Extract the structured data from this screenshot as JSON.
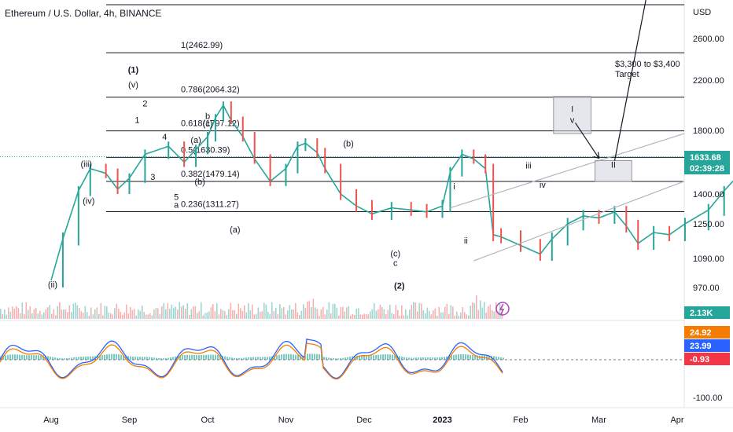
{
  "header": {
    "title": "Ethereum / U.S. Dollar, 4h, BINANCE"
  },
  "chart_data": {
    "type": "line",
    "price_axis": {
      "unit": "USD",
      "ticks": [
        2600,
        2200,
        1800,
        1400,
        1250,
        1090,
        970
      ],
      "tick_labels": [
        "2600.00",
        "2200.00",
        "1800.00",
        "1400.00",
        "1250.00",
        "1090.00",
        "970.00"
      ]
    },
    "time_axis": {
      "labels": [
        "Aug",
        "Sep",
        "Oct",
        "Nov",
        "Dec",
        "2023",
        "Feb",
        "Mar",
        "Apr"
      ]
    },
    "last_price": "1633.68",
    "countdown": "02:39:28",
    "volume_value": "2.13K",
    "fib_levels": [
      {
        "ratio": "1",
        "price": 2462.99,
        "label": "1(2462.99)"
      },
      {
        "ratio": "0.786",
        "price": 2064.32,
        "label": "0.786(2064.32)"
      },
      {
        "ratio": "0.618",
        "price": 1797.12,
        "label": "0.618(1797.12)"
      },
      {
        "ratio": "0.5",
        "price": 1630.39,
        "label": "0.5(1630.39)"
      },
      {
        "ratio": "0.382",
        "price": 1479.14,
        "label": "0.382(1479.14)"
      },
      {
        "ratio": "0.236",
        "price": 1311.27,
        "label": "0.236(1311.27)"
      }
    ],
    "price_series": [
      [
        0,
        1000
      ],
      [
        0.15,
        1180
      ],
      [
        0.35,
        1420
      ],
      [
        0.5,
        1560
      ],
      [
        0.7,
        1530
      ],
      [
        0.85,
        1430
      ],
      [
        1.0,
        1500
      ],
      [
        1.2,
        1650
      ],
      [
        1.5,
        1700
      ],
      [
        1.7,
        1600
      ],
      [
        1.85,
        1680
      ],
      [
        2.0,
        1760
      ],
      [
        2.1,
        1900
      ],
      [
        2.2,
        2000
      ],
      [
        2.3,
        1880
      ],
      [
        2.45,
        1760
      ],
      [
        2.6,
        1620
      ],
      [
        2.8,
        1480
      ],
      [
        3.0,
        1560
      ],
      [
        3.15,
        1700
      ],
      [
        3.25,
        1720
      ],
      [
        3.4,
        1660
      ],
      [
        3.5,
        1560
      ],
      [
        3.7,
        1400
      ],
      [
        3.9,
        1340
      ],
      [
        4.1,
        1300
      ],
      [
        4.35,
        1330
      ],
      [
        4.6,
        1320
      ],
      [
        4.8,
        1310
      ],
      [
        5.0,
        1340
      ],
      [
        5.1,
        1540
      ],
      [
        5.25,
        1650
      ],
      [
        5.4,
        1620
      ],
      [
        5.55,
        1560
      ],
      [
        5.65,
        1200
      ],
      [
        5.75,
        1190
      ],
      [
        6.0,
        1150
      ],
      [
        6.25,
        1110
      ],
      [
        6.4,
        1180
      ],
      [
        6.6,
        1250
      ],
      [
        6.8,
        1290
      ],
      [
        7.0,
        1280
      ],
      [
        7.2,
        1310
      ],
      [
        7.35,
        1240
      ],
      [
        7.5,
        1160
      ],
      [
        7.7,
        1210
      ],
      [
        7.9,
        1200
      ],
      [
        8.1,
        1250
      ],
      [
        8.4,
        1320
      ],
      [
        8.6,
        1420
      ],
      [
        8.75,
        1500
      ],
      [
        8.9,
        1560
      ],
      [
        9.0,
        1600
      ],
      [
        9.1,
        1630
      ],
      [
        9.15,
        1650
      ],
      [
        9.22,
        1634
      ]
    ],
    "wave_labels": [
      {
        "text": "(1)",
        "major": true,
        "t": 1.05,
        "p": 2270
      },
      {
        "text": "(v)",
        "t": 1.05,
        "p": 2140
      },
      {
        "text": "2",
        "t": 1.2,
        "p": 1990
      },
      {
        "text": "1",
        "t": 1.1,
        "p": 1860
      },
      {
        "text": "(iii)",
        "t": 0.45,
        "p": 1570
      },
      {
        "text": "(iv)",
        "t": 0.48,
        "p": 1350
      },
      {
        "text": "(ii)",
        "t": 0.02,
        "p": 970
      },
      {
        "text": "4",
        "t": 1.45,
        "p": 1740
      },
      {
        "text": "3",
        "t": 1.3,
        "p": 1490
      },
      {
        "text": "5",
        "t": 1.6,
        "p": 1370
      },
      {
        "text": "a",
        "t": 1.6,
        "p": 1330
      },
      {
        "text": "(a)",
        "t": 1.85,
        "p": 1720
      },
      {
        "text": "(b)",
        "t": 1.9,
        "p": 1460
      },
      {
        "text": "b",
        "t": 2.0,
        "p": 1890
      },
      {
        "text": "(c)",
        "t": 2.0,
        "p": 1830
      },
      {
        "text": "(a)",
        "t": 2.35,
        "p": 1210
      },
      {
        "text": "(b)",
        "t": 3.8,
        "p": 1700
      },
      {
        "text": "(c)",
        "t": 4.4,
        "p": 1100
      },
      {
        "text": "c",
        "t": 4.4,
        "p": 1060
      },
      {
        "text": "(2)",
        "major": true,
        "t": 4.45,
        "p": 965
      },
      {
        "text": "i",
        "t": 5.15,
        "p": 1430
      },
      {
        "text": "ii",
        "t": 5.3,
        "p": 1160
      },
      {
        "text": "iii",
        "t": 6.1,
        "p": 1560
      },
      {
        "text": "iv",
        "t": 6.28,
        "p": 1440
      }
    ],
    "boxes": [
      {
        "label": "I",
        "sublabel": "v",
        "t1": 6.42,
        "t2": 6.9,
        "p1": 1780,
        "p2": 2070
      },
      {
        "label": "II",
        "t1": 6.95,
        "t2": 7.42,
        "p1": 1480,
        "p2": 1610
      }
    ],
    "target_annotation": {
      "line1": "$3,300 to $3,400",
      "line2": "Target"
    },
    "oscillator": {
      "ticks": [
        -100
      ],
      "tick_labels": [
        "-100.00"
      ],
      "values": [
        "24.92",
        "23.99",
        "-0.93"
      ],
      "colors": [
        "#f57c00",
        "#2962ff",
        "#f23645"
      ]
    }
  }
}
